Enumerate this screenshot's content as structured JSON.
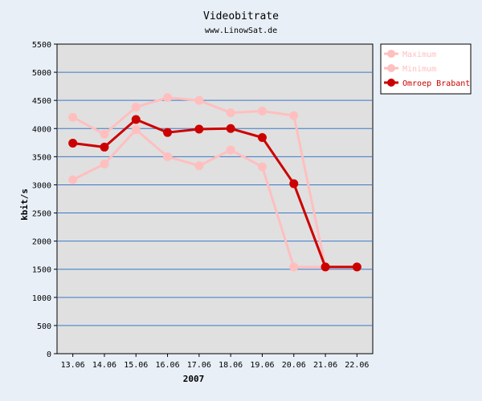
{
  "chart_data": {
    "type": "line",
    "title": "Videobitrate",
    "subtitle": "www.LinowSat.de",
    "xlabel": "2007",
    "ylabel": "kbit/s",
    "categories": [
      "13.06",
      "14.06",
      "15.06",
      "16.06",
      "17.06",
      "18.06",
      "19.06",
      "20.06",
      "21.06",
      "22.06"
    ],
    "ylim": [
      0,
      5500
    ],
    "yticks": [
      0,
      500,
      1000,
      1500,
      2000,
      2500,
      3000,
      3500,
      4000,
      4500,
      5000,
      5500
    ],
    "grid": true,
    "legend_position": "right",
    "series": [
      {
        "name": "Maximum",
        "color": "#ffbfbf",
        "values": [
          4200,
          3900,
          4380,
          4550,
          4500,
          4280,
          4310,
          4230,
          1540,
          1540
        ]
      },
      {
        "name": "Minimum",
        "color": "#ffbfbf",
        "values": [
          3090,
          3370,
          3980,
          3500,
          3340,
          3620,
          3320,
          1540,
          1540,
          1540
        ]
      },
      {
        "name": "Omroep Brabant",
        "color": "#cc0000",
        "values": [
          3740,
          3670,
          4160,
          3930,
          3990,
          4000,
          3840,
          3020,
          1540,
          1540
        ]
      }
    ]
  },
  "colors": {
    "background": "#e8eff7",
    "plot_background": "#e0e0e0",
    "grid": "#3b78c8",
    "axis": "#000000"
  }
}
